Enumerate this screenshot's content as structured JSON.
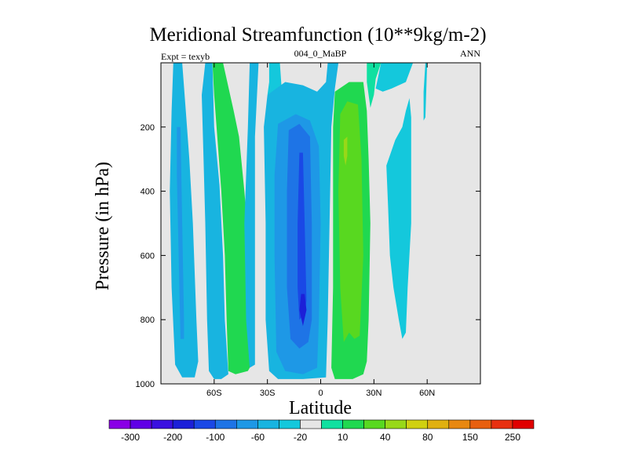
{
  "chart_data": {
    "type": "contour",
    "title": "Meridional Streamfunction (10**9kg/m-2)",
    "left_string": "Expt = texyb",
    "center_string": "004_0_MaBP",
    "right_string": "ANN",
    "xlabel": "Latitude",
    "ylabel": "Pressure (in hPa)",
    "xlim": [
      -90,
      90
    ],
    "ylim": [
      1000,
      0
    ],
    "x_ticks": [
      {
        "value": -60,
        "label": "60S"
      },
      {
        "value": -30,
        "label": "30S"
      },
      {
        "value": 0,
        "label": "0"
      },
      {
        "value": 30,
        "label": "30N"
      },
      {
        "value": 60,
        "label": "60N"
      }
    ],
    "y_ticks": [
      {
        "value": 200,
        "label": "200"
      },
      {
        "value": 400,
        "label": "400"
      },
      {
        "value": 600,
        "label": "600"
      },
      {
        "value": 800,
        "label": "800"
      },
      {
        "value": 1000,
        "label": "1000"
      }
    ],
    "background_color": "#e6e6e6",
    "colorbar": {
      "colors": [
        "#8a00e6",
        "#6000e6",
        "#3a10e0",
        "#1c20d8",
        "#1a48e6",
        "#1e74e6",
        "#1e98e6",
        "#18b4e0",
        "#14c8dc",
        "#e6e6e6",
        "#10e0a0",
        "#20d850",
        "#58d820",
        "#98d818",
        "#d0d010",
        "#e0b010",
        "#e88810",
        "#e86010",
        "#e83010",
        "#e00000"
      ],
      "labels": [
        {
          "after_box": 1,
          "text": "-300"
        },
        {
          "after_box": 3,
          "text": "-200"
        },
        {
          "after_box": 5,
          "text": "-100"
        },
        {
          "after_box": 7,
          "text": "-60"
        },
        {
          "after_box": 9,
          "text": "-20"
        },
        {
          "after_box": 11,
          "text": "10"
        },
        {
          "after_box": 13,
          "text": "40"
        },
        {
          "after_box": 15,
          "text": "80"
        },
        {
          "after_box": 17,
          "text": "150"
        },
        {
          "after_box": 19,
          "text": "250"
        }
      ]
    },
    "regions": [
      {
        "fill": "#18b4e0",
        "points": [
          [
            -83,
            0
          ],
          [
            -78,
            0
          ],
          [
            -76,
            150
          ],
          [
            -74,
            300
          ],
          [
            -72,
            500
          ],
          [
            -70,
            800
          ],
          [
            -69,
            930
          ],
          [
            -71,
            980
          ],
          [
            -78,
            980
          ],
          [
            -82,
            940
          ],
          [
            -84,
            700
          ],
          [
            -85,
            400
          ],
          [
            -84,
            150
          ]
        ]
      },
      {
        "fill": "#1e98e6",
        "points": [
          [
            -81,
            200
          ],
          [
            -79,
            200
          ],
          [
            -78,
            500
          ],
          [
            -77,
            800
          ],
          [
            -77,
            860
          ],
          [
            -79,
            860
          ],
          [
            -80,
            600
          ],
          [
            -81,
            350
          ]
        ]
      },
      {
        "fill": "#18b4e0",
        "points": [
          [
            -65,
            0
          ],
          [
            -61,
            0
          ],
          [
            -60,
            200
          ],
          [
            -57,
            380
          ],
          [
            -55,
            600
          ],
          [
            -54,
            800
          ],
          [
            -52,
            970
          ],
          [
            -56,
            985
          ],
          [
            -60,
            985
          ],
          [
            -63,
            960
          ],
          [
            -64,
            800
          ],
          [
            -65,
            500
          ],
          [
            -66,
            300
          ],
          [
            -67,
            100
          ]
        ]
      },
      {
        "fill": "#20d850",
        "points": [
          [
            -61,
            0
          ],
          [
            -55,
            0
          ],
          [
            -49,
            150
          ],
          [
            -46,
            230
          ],
          [
            -43,
            400
          ],
          [
            -40,
            600
          ],
          [
            -39,
            800
          ],
          [
            -38,
            930
          ],
          [
            -41,
            960
          ],
          [
            -48,
            970
          ],
          [
            -52,
            960
          ],
          [
            -53,
            800
          ],
          [
            -54,
            600
          ],
          [
            -56,
            400
          ],
          [
            -58,
            250
          ],
          [
            -60,
            100
          ]
        ]
      },
      {
        "fill": "#18b4e0",
        "points": [
          [
            -40,
            0
          ],
          [
            -35,
            0
          ],
          [
            -37,
            230
          ],
          [
            -37,
            500
          ],
          [
            -37,
            800
          ],
          [
            -37,
            940
          ],
          [
            -40,
            950
          ],
          [
            -42,
            800
          ],
          [
            -43,
            500
          ],
          [
            -41,
            200
          ]
        ]
      },
      {
        "fill": "#14c8dc",
        "points": [
          [
            -29,
            0
          ],
          [
            -23,
            0
          ],
          [
            -22,
            80
          ],
          [
            -30,
            100
          ],
          [
            -29,
            60
          ]
        ]
      },
      {
        "fill": "#18b4e0",
        "points": [
          [
            -30,
            100
          ],
          [
            -20,
            60
          ],
          [
            -10,
            70
          ],
          [
            -2,
            90
          ],
          [
            3,
            60
          ],
          [
            4,
            0
          ],
          [
            10,
            0
          ],
          [
            8,
            80
          ],
          [
            6,
            200
          ],
          [
            5,
            500
          ],
          [
            4,
            800
          ],
          [
            3,
            980
          ],
          [
            -10,
            985
          ],
          [
            -24,
            985
          ],
          [
            -29,
            960
          ],
          [
            -31,
            800
          ],
          [
            -31,
            500
          ],
          [
            -32,
            200
          ]
        ]
      },
      {
        "fill": "#1e98e6",
        "points": [
          [
            -24,
            190
          ],
          [
            -14,
            160
          ],
          [
            -6,
            180
          ],
          [
            -1,
            260
          ],
          [
            0,
            500
          ],
          [
            -1,
            800
          ],
          [
            -2,
            950
          ],
          [
            -10,
            970
          ],
          [
            -20,
            960
          ],
          [
            -25,
            900
          ],
          [
            -26,
            600
          ],
          [
            -26,
            350
          ]
        ]
      },
      {
        "fill": "#1e74e6",
        "points": [
          [
            -18,
            210
          ],
          [
            -12,
            190
          ],
          [
            -6,
            230
          ],
          [
            -5,
            500
          ],
          [
            -5,
            800
          ],
          [
            -7,
            870
          ],
          [
            -12,
            890
          ],
          [
            -17,
            860
          ],
          [
            -19,
            700
          ],
          [
            -19,
            400
          ]
        ]
      },
      {
        "fill": "#1a48e6",
        "points": [
          [
            -12,
            280
          ],
          [
            -10,
            280
          ],
          [
            -9,
            500
          ],
          [
            -8,
            740
          ],
          [
            -9,
            780
          ],
          [
            -12,
            800
          ],
          [
            -13,
            700
          ],
          [
            -13,
            500
          ]
        ]
      },
      {
        "fill": "#1c20d8",
        "points": [
          [
            -11,
            720
          ],
          [
            -9,
            720
          ],
          [
            -8,
            770
          ],
          [
            -10,
            820
          ],
          [
            -12,
            770
          ]
        ]
      },
      {
        "fill": "#20d850",
        "points": [
          [
            8,
            90
          ],
          [
            16,
            60
          ],
          [
            24,
            60
          ],
          [
            26,
            150
          ],
          [
            27,
            300
          ],
          [
            28,
            500
          ],
          [
            27,
            800
          ],
          [
            26,
            930
          ],
          [
            24,
            970
          ],
          [
            18,
            985
          ],
          [
            8,
            985
          ],
          [
            6,
            950
          ],
          [
            7,
            700
          ],
          [
            7,
            400
          ],
          [
            7,
            200
          ]
        ]
      },
      {
        "fill": "#58d820",
        "points": [
          [
            11,
            160
          ],
          [
            15,
            120
          ],
          [
            21,
            130
          ],
          [
            23,
            300
          ],
          [
            24,
            600
          ],
          [
            22,
            850
          ],
          [
            19,
            860
          ],
          [
            16,
            840
          ],
          [
            13,
            870
          ],
          [
            11,
            700
          ],
          [
            10,
            400
          ]
        ]
      },
      {
        "fill": "#98d818",
        "points": [
          [
            13,
            240
          ],
          [
            15,
            230
          ],
          [
            15,
            290
          ],
          [
            14,
            320
          ],
          [
            13,
            290
          ]
        ]
      },
      {
        "fill": "#10e0a0",
        "points": [
          [
            26,
            0
          ],
          [
            34,
            0
          ],
          [
            31,
            50
          ],
          [
            30,
            100
          ],
          [
            28,
            140
          ],
          [
            26,
            60
          ]
        ]
      },
      {
        "fill": "#14c8dc",
        "points": [
          [
            34,
            0
          ],
          [
            52,
            0
          ],
          [
            48,
            60
          ],
          [
            40,
            80
          ],
          [
            35,
            90
          ],
          [
            31,
            80
          ]
        ]
      },
      {
        "fill": "#14c8dc",
        "points": [
          [
            37,
            320
          ],
          [
            42,
            240
          ],
          [
            46,
            200
          ],
          [
            48,
            150
          ],
          [
            50,
            110
          ],
          [
            51,
            170
          ],
          [
            51,
            300
          ],
          [
            51,
            500
          ],
          [
            49,
            700
          ],
          [
            48,
            840
          ],
          [
            46,
            860
          ],
          [
            44,
            800
          ],
          [
            41,
            700
          ],
          [
            39,
            600
          ],
          [
            38,
            450
          ]
        ]
      },
      {
        "fill": "#14c8dc",
        "points": [
          [
            59,
            0
          ],
          [
            60,
            0
          ],
          [
            59,
            170
          ],
          [
            58,
            180
          ],
          [
            58,
            90
          ]
        ]
      }
    ]
  }
}
